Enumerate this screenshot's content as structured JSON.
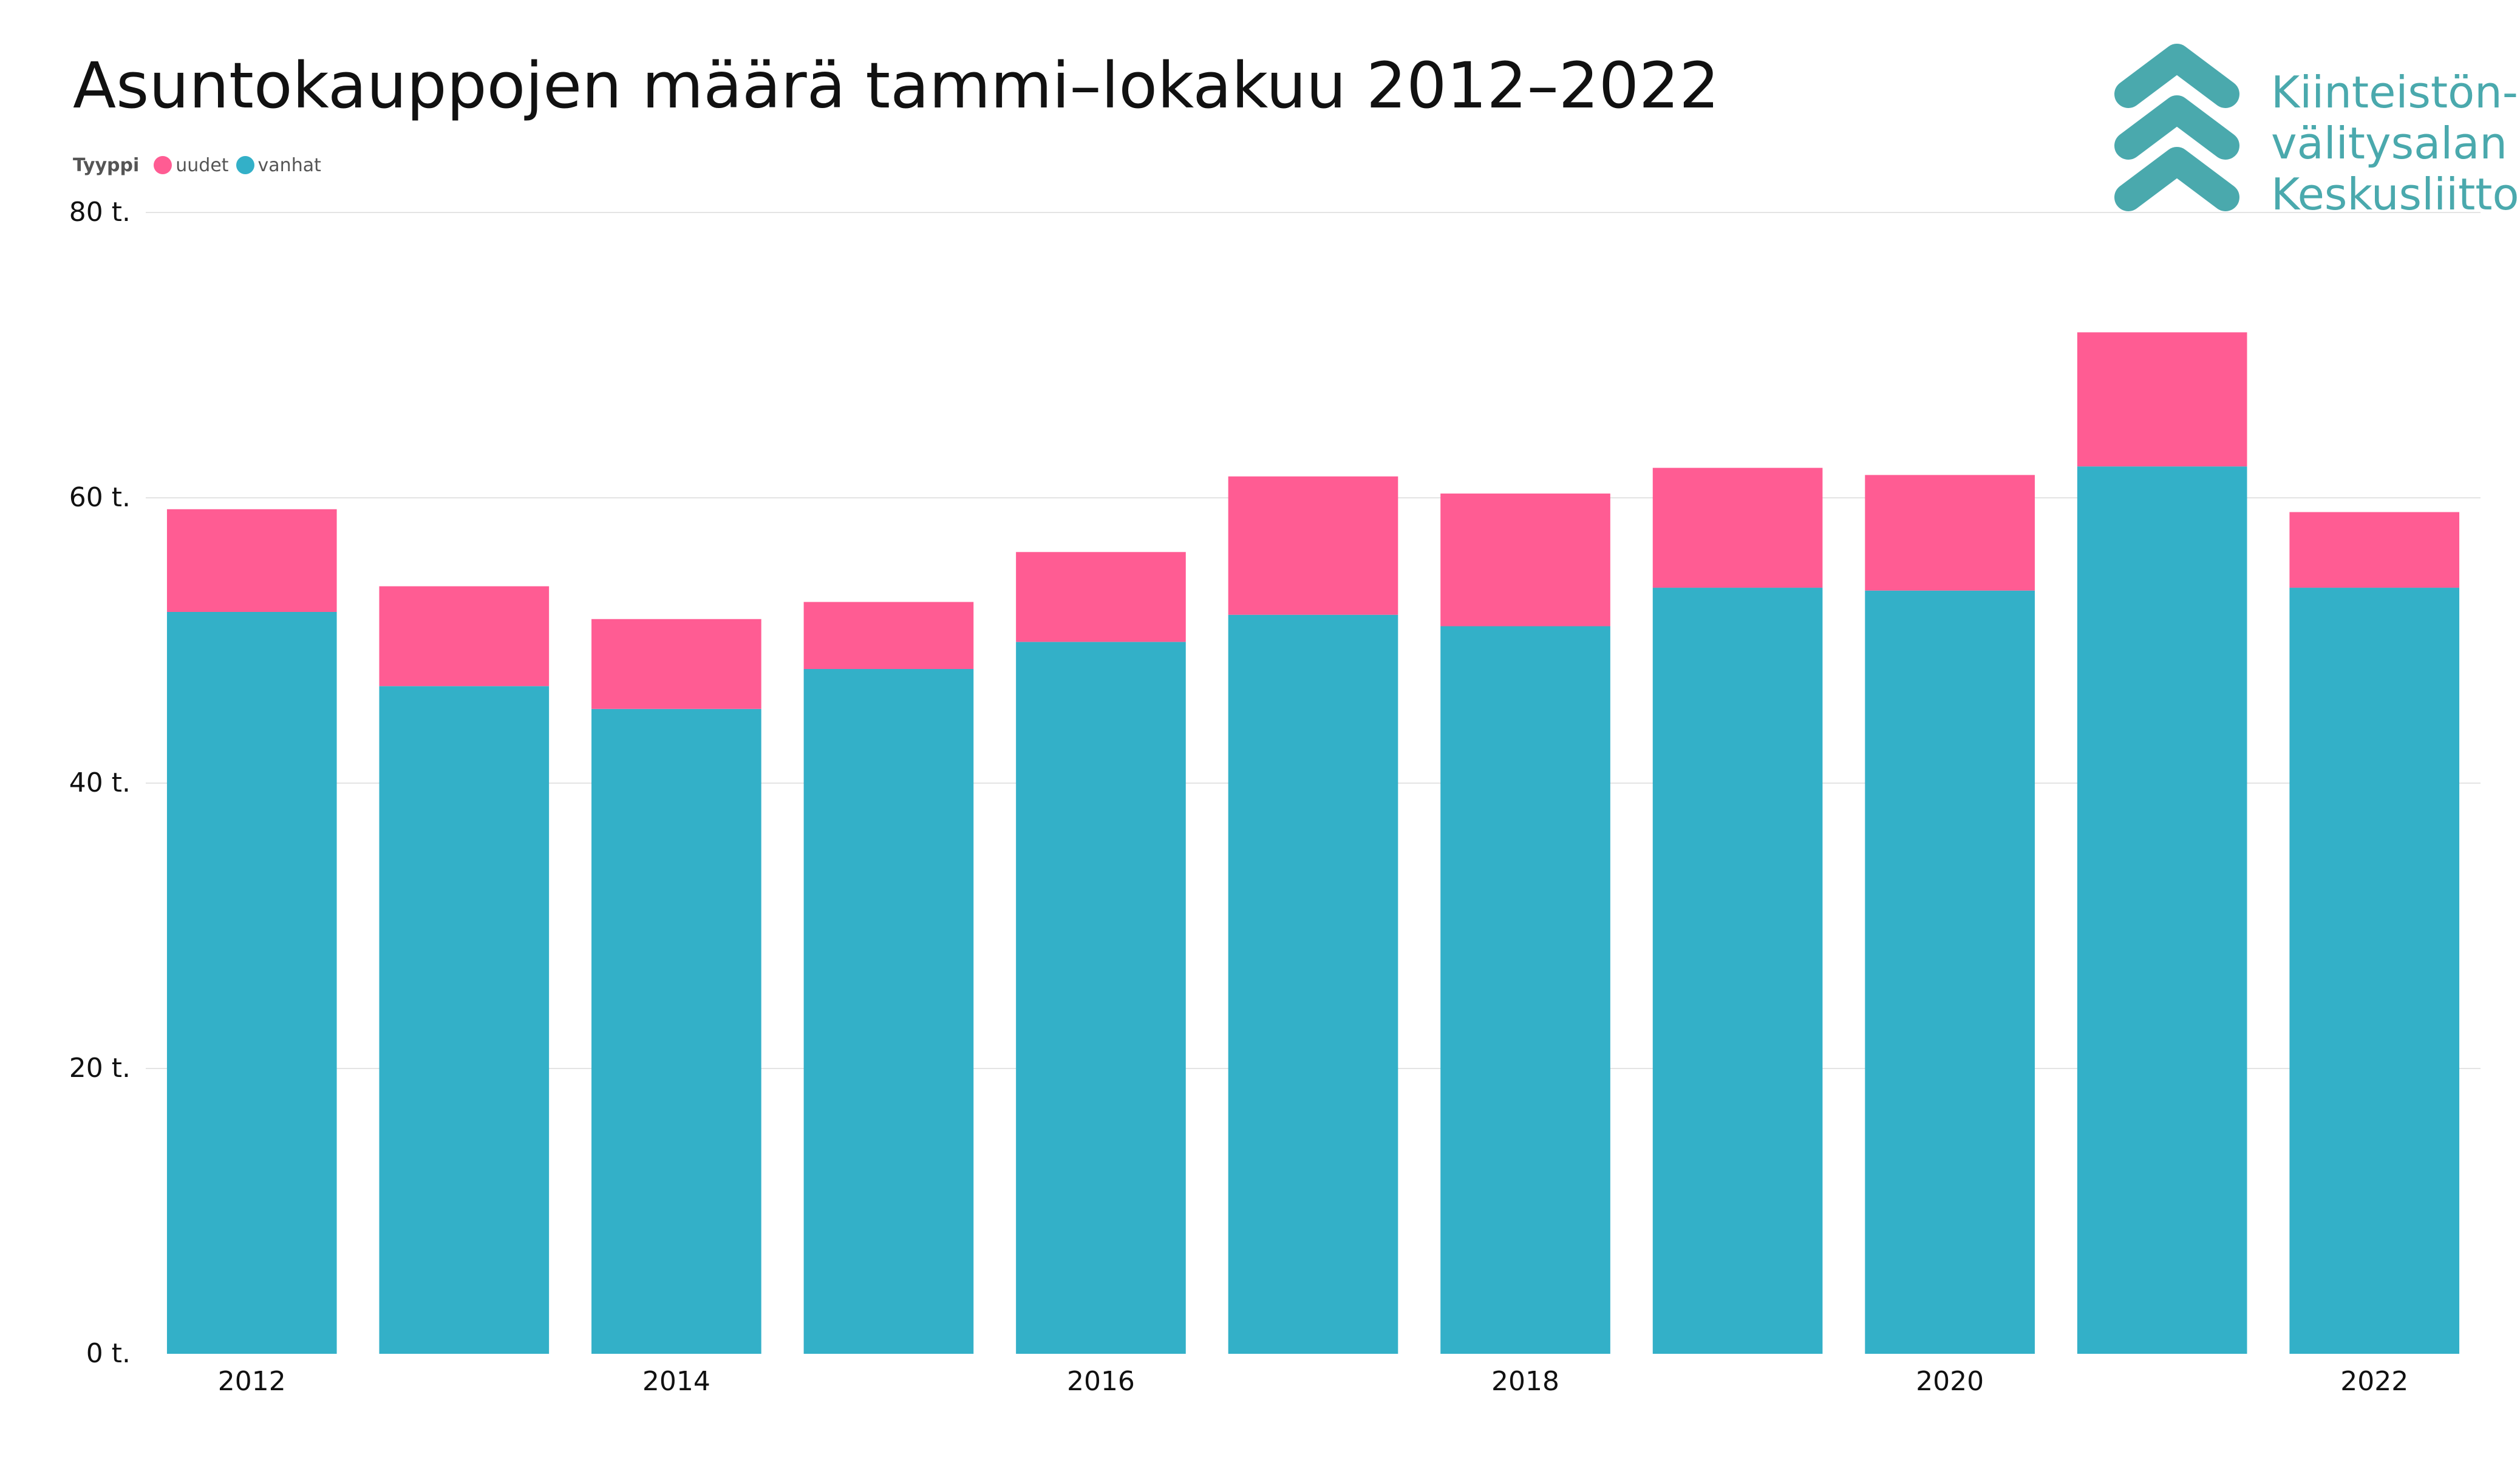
{
  "title": "Asuntokauppojen määrä tammi–lokakuu 2012–2022",
  "legend": {
    "title": "Tyyppi",
    "items": [
      {
        "label": "uudet",
        "color": "#ff5c93"
      },
      {
        "label": "vanhat",
        "color": "#33b0c8"
      }
    ]
  },
  "logo": {
    "lines": [
      "Kiinteistön-",
      "välitysalan",
      "Keskusliitto"
    ],
    "color": "#4aa9ad",
    "icon": "triple-chevron-up-icon"
  },
  "chart_data": {
    "type": "bar",
    "stacked": true,
    "categories": [
      2012,
      2013,
      2014,
      2015,
      2016,
      2017,
      2018,
      2019,
      2020,
      2021,
      2022
    ],
    "x_tick_labels": [
      "2012",
      "",
      "2014",
      "",
      "2016",
      "",
      "2018",
      "",
      "2020",
      "",
      "2022"
    ],
    "series": [
      {
        "name": "vanhat",
        "color": "#33b0c8",
        "values": [
          52000,
          46800,
          45200,
          48000,
          49900,
          51800,
          51000,
          53700,
          53500,
          62200,
          53700
        ]
      },
      {
        "name": "uudet",
        "color": "#ff5c93",
        "values": [
          7200,
          7000,
          6300,
          4700,
          6300,
          9700,
          9300,
          8400,
          8100,
          9400,
          5300
        ]
      }
    ],
    "ylim": [
      0,
      80000
    ],
    "y_ticks": [
      0,
      20000,
      40000,
      60000,
      80000
    ],
    "y_tick_labels": [
      "0 t.",
      "20 t.",
      "40 t.",
      "60 t.",
      "80 t."
    ],
    "grid": true,
    "legend_position": "top-left"
  }
}
